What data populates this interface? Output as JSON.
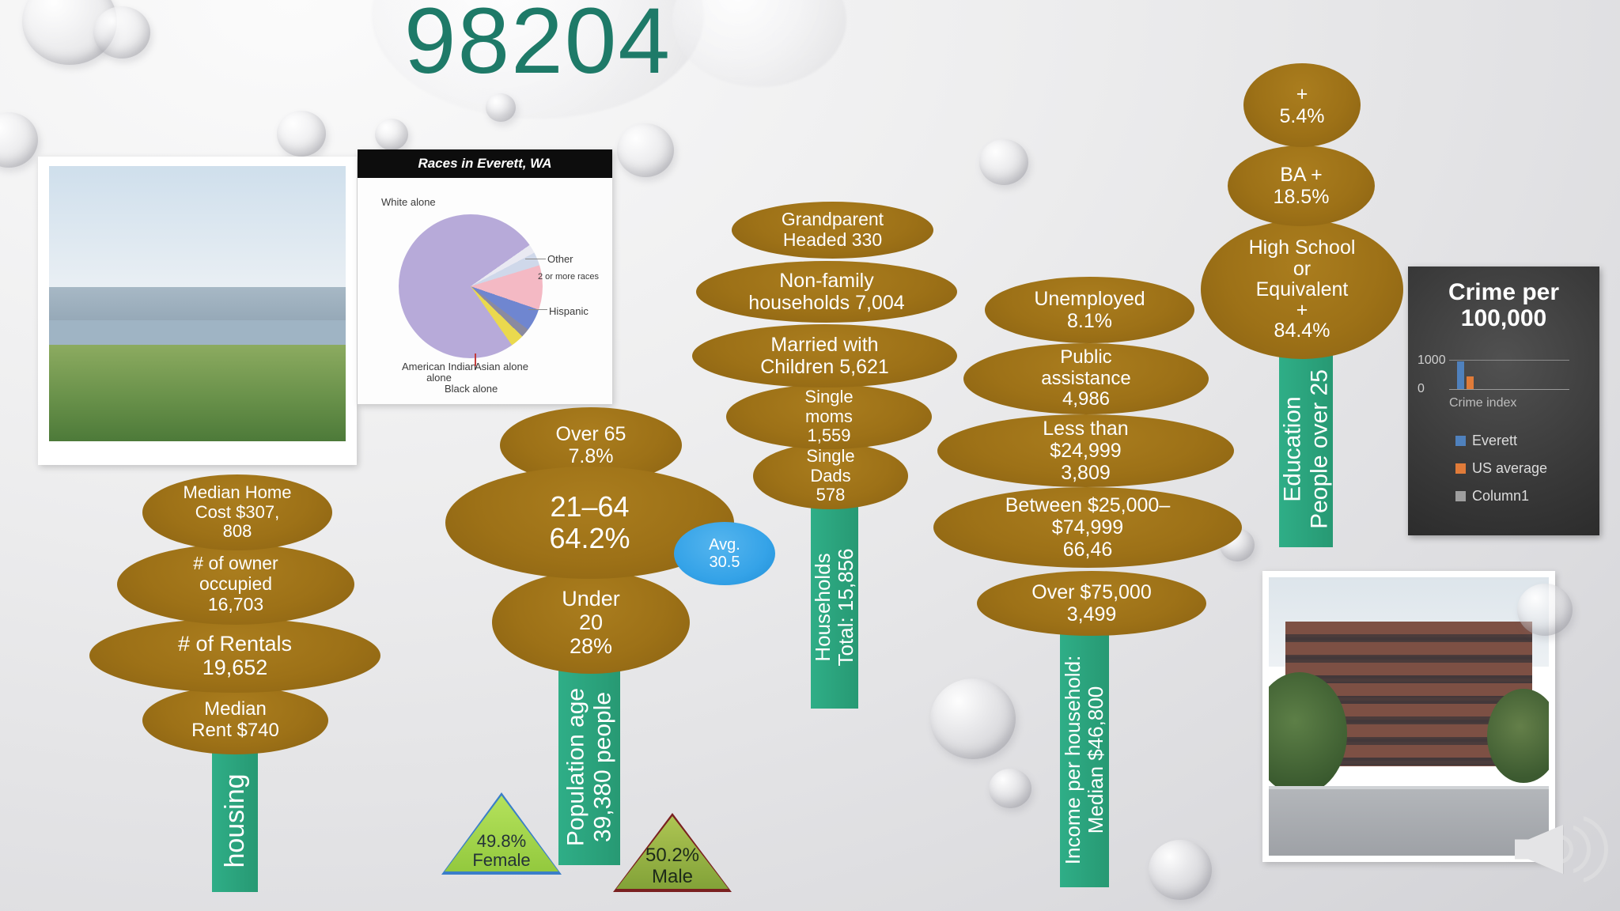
{
  "slide": {
    "title": "98204"
  },
  "colors": {
    "leaf_brown": "#9d7117",
    "trunk_teal": "#2aa17c",
    "title_teal": "#1e7a68",
    "avg_blue": "#35a3e8",
    "female_fill": "#a6d94b",
    "female_border": "#3a7ec8",
    "male_fill": "#8fae3e",
    "male_border": "#7a2020"
  },
  "races_chart": {
    "header": "Races in Everett, WA",
    "labels": {
      "white": "White alone",
      "other": "Other",
      "two_or_more": "2 or more races",
      "hispanic": "Hispanic",
      "american_indian": "American Indian\nalone",
      "asian": "Asian alone",
      "black": "Black alone"
    }
  },
  "housing": {
    "trunk": "housing",
    "leaves": {
      "median_home": "Median Home\nCost $307,\n808",
      "owner_occupied": "# of owner\noccupied\n16,703",
      "rentals": "# of Rentals\n19,652",
      "median_rent": "Median\nRent $740"
    }
  },
  "population": {
    "trunk": "Population age\n39,380 people",
    "leaves": {
      "over_65": "Over 65\n7.8%",
      "age_21_64": "21–64\n64.2%",
      "under_20": "Under\n20\n28%"
    },
    "avg": "Avg.\n30.5",
    "female": "49.8%\nFemale",
    "male": "50.2%\nMale"
  },
  "households": {
    "trunk": "Households\nTotal: 15,856",
    "leaves": {
      "grandparent": "Grandparent\nHeaded 330",
      "non_family": "Non-family\nhouseholds 7,004",
      "married": "Married with\nChildren 5,621",
      "single_moms": "Single\nmoms\n1,559",
      "single_dads": "Single\nDads\n578"
    }
  },
  "income": {
    "trunk": "Income per household:\nMedian $46,800",
    "leaves": {
      "unemployed": "Unemployed\n8.1%",
      "public_assistance": "Public\nassistance\n4,986",
      "less_than_25k": "Less than\n$24,999\n3,809",
      "between_25k_75k": "Between $25,000–\n$74,999\n66,46",
      "over_75k": "Over $75,000\n3,499"
    }
  },
  "education": {
    "trunk": "Education\nPeople over 25",
    "leaves": {
      "grad_plus": "+\n5.4%",
      "ba_plus": "BA +\n18.5%",
      "high_school": "High School\nor\nEquivalent\n+\n84.4%"
    }
  },
  "crime_panel": {
    "title": "Crime per\n100,000",
    "y_ticks": [
      "1000",
      "0"
    ],
    "x_label": "Crime index",
    "legend": [
      {
        "label": "Everett",
        "color": "#4f81bd"
      },
      {
        "label": "US average",
        "color": "#e07b39"
      },
      {
        "label": "Column1",
        "color": "#9e9e9e"
      }
    ]
  },
  "chart_data": [
    {
      "type": "pie",
      "title": "Races in Everett, WA",
      "slices": [
        {
          "label": "Other",
          "value": 2,
          "color": "#e9e9f2"
        },
        {
          "label": "2 or more races",
          "value": 3,
          "color": "#cfd8ea"
        },
        {
          "label": "Hispanic",
          "value": 10,
          "color": "#f4b9c4"
        },
        {
          "label": "Asian alone",
          "value": 5,
          "color": "#6f86d0"
        },
        {
          "label": "Black alone",
          "value": 2,
          "color": "#8a8aa0"
        },
        {
          "label": "American Indian alone",
          "value": 3,
          "color": "#ead94e"
        },
        {
          "label": "White alone",
          "value": 75,
          "color": "#b7aad9"
        }
      ]
    },
    {
      "type": "bar",
      "title": "Crime per 100,000",
      "categories": [
        "Crime index"
      ],
      "ylim": [
        0,
        1000
      ],
      "series": [
        {
          "name": "Everett",
          "values": [
            950
          ],
          "color": "#4f81bd"
        },
        {
          "name": "US average",
          "values": [
            430
          ],
          "color": "#e07b39"
        },
        {
          "name": "Column1",
          "values": [
            10
          ],
          "color": "#9e9e9e"
        }
      ],
      "legend_position": "below"
    }
  ]
}
